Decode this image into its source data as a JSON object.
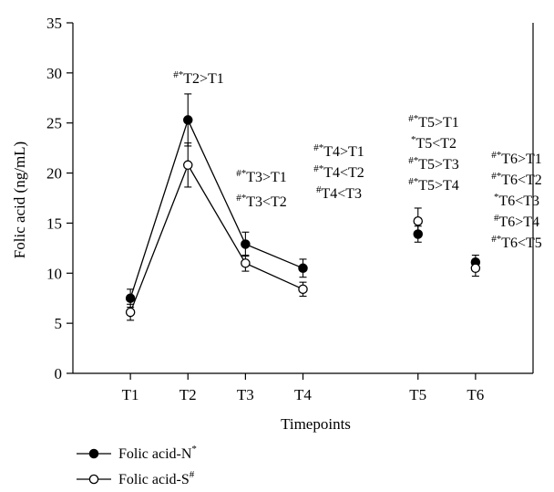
{
  "chart_data": {
    "type": "scatter",
    "title": "",
    "xlabel": "Timepoints",
    "ylabel": "Folic acid (ng/mL)",
    "ylim": [
      0,
      35
    ],
    "yticks": [
      0,
      5,
      10,
      15,
      20,
      25,
      30,
      35
    ],
    "categories": [
      "T1",
      "T2",
      "T3",
      "T4",
      "T5",
      "T6"
    ],
    "x_positions": [
      1,
      2,
      3,
      4,
      6,
      7
    ],
    "connected_through": "T4",
    "series": [
      {
        "name": "Folic acid-N",
        "name_sup": "*",
        "marker": "filled-circle",
        "color": "#000000",
        "values": [
          7.5,
          25.3,
          12.9,
          10.5,
          13.9,
          11.1
        ],
        "errors": [
          0.9,
          2.6,
          1.2,
          0.9,
          0.8,
          0.7
        ]
      },
      {
        "name": "Folic acid-S",
        "name_sup": "#",
        "marker": "open-circle",
        "color": "#000000",
        "values": [
          6.1,
          20.8,
          11.0,
          8.4,
          15.2,
          10.5
        ],
        "errors": [
          0.8,
          2.2,
          0.8,
          0.7,
          1.3,
          0.8
        ]
      }
    ],
    "annotations": [
      {
        "lines": [
          {
            "sup": "#*",
            "text": "T2>T1"
          }
        ]
      },
      {
        "lines": [
          {
            "sup": "#*",
            "text": "T3>T1"
          },
          {
            "sup": "#*",
            "text": "T3<T2"
          }
        ]
      },
      {
        "lines": [
          {
            "sup": "#*",
            "text": "T4>T1"
          },
          {
            "sup": "#*",
            "text": "T4<T2"
          },
          {
            "sup": "#",
            "text": "T4<T3"
          }
        ]
      },
      {
        "lines": [
          {
            "sup": "#*",
            "text": "T5>T1"
          },
          {
            "sup": "*",
            "text": "T5<T2"
          },
          {
            "sup": "#*",
            "text": "T5>T3"
          },
          {
            "sup": "#*",
            "text": "T5>T4"
          }
        ]
      },
      {
        "lines": [
          {
            "sup": "#*",
            "text": "T6>T1"
          },
          {
            "sup": "#*",
            "text": "T6<T2"
          },
          {
            "sup": "*",
            "text": "T6<T3"
          },
          {
            "sup": "#",
            "text": "T6>T4"
          },
          {
            "sup": "#*",
            "text": "T6<T5"
          }
        ]
      }
    ],
    "legend_position": "bottom-left",
    "grid": false
  }
}
